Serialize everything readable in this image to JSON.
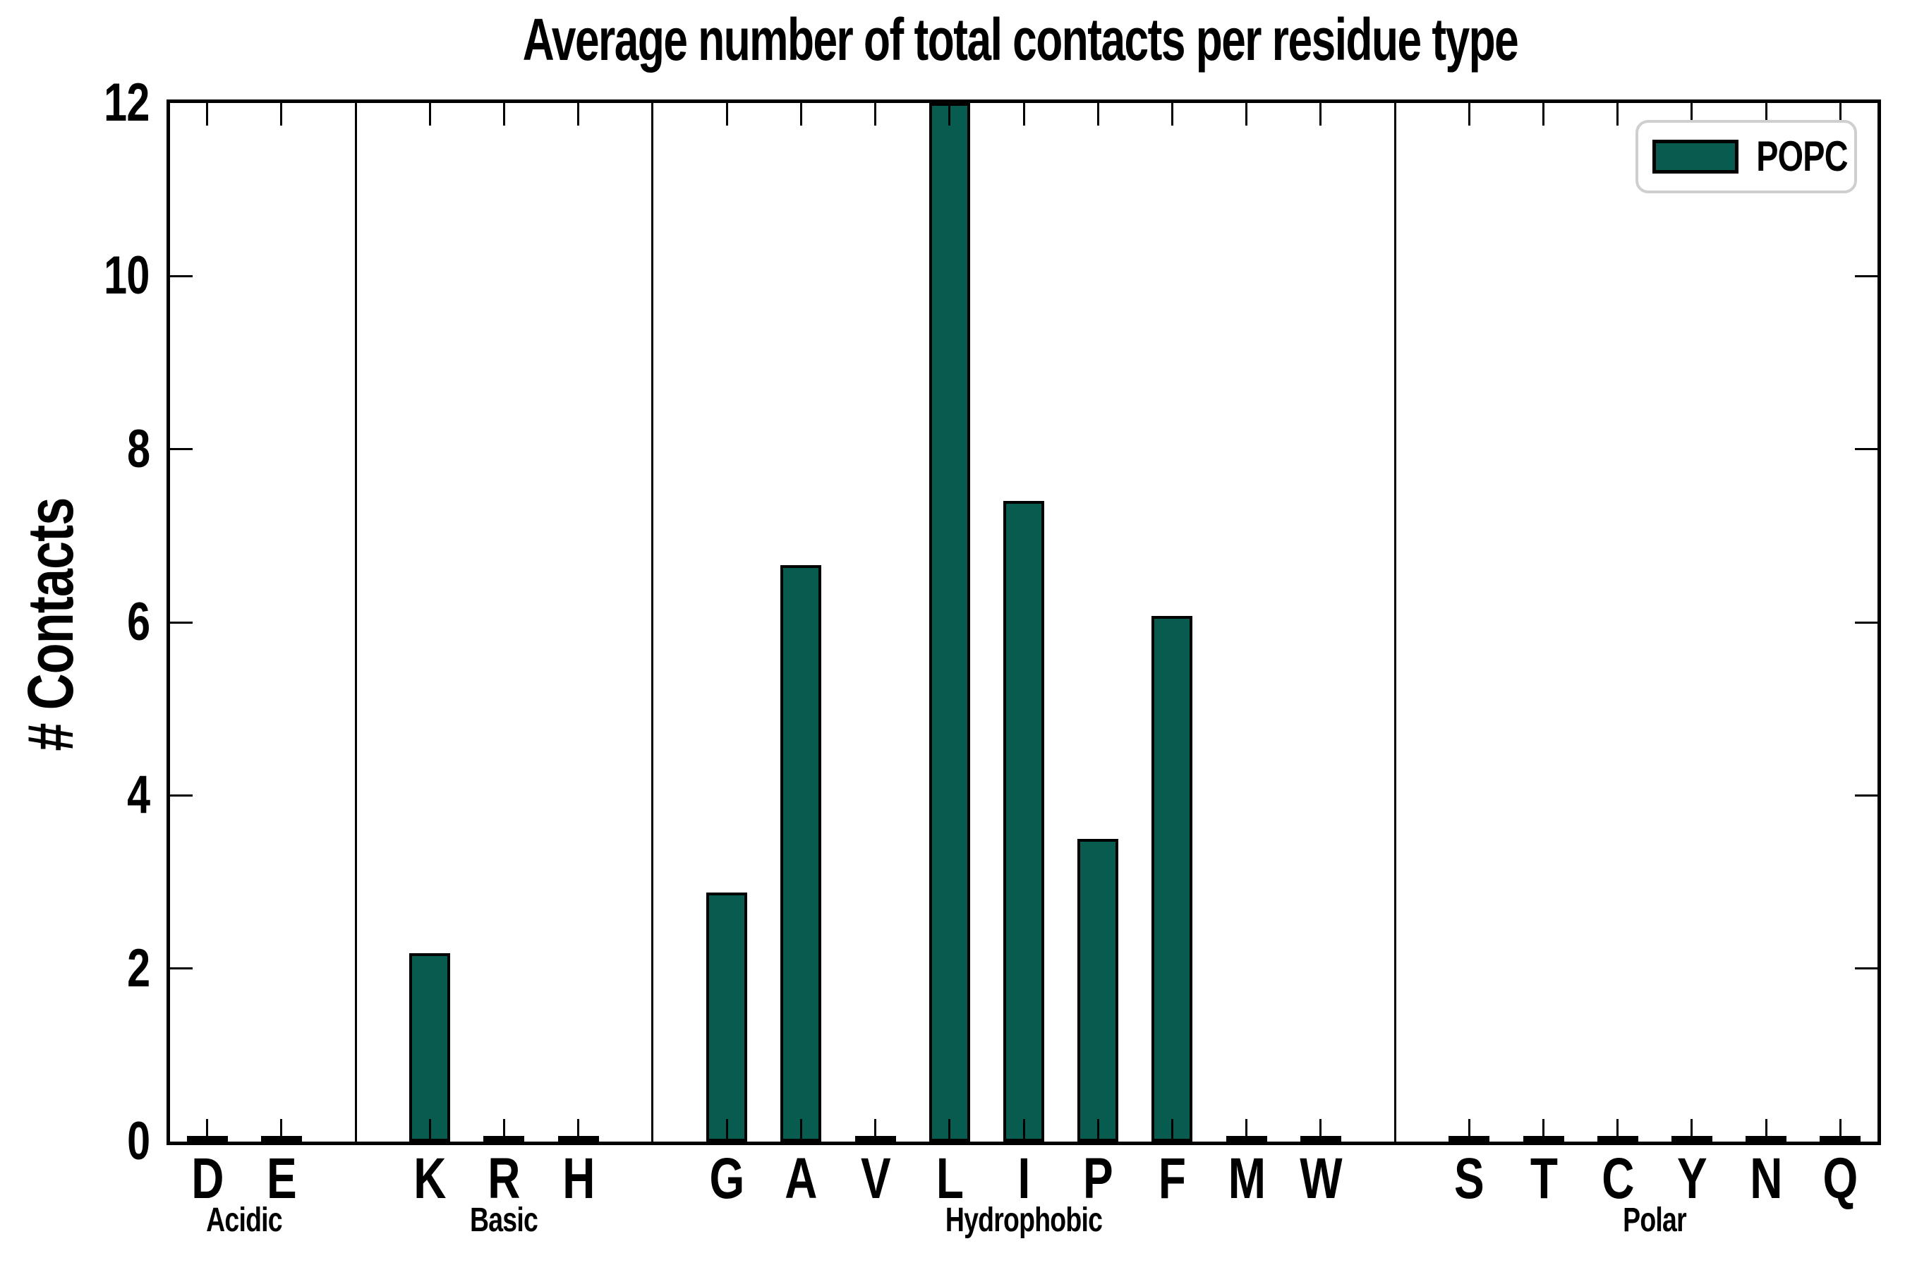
{
  "chart_data": {
    "type": "bar",
    "title": "Average number of total contacts per residue type",
    "xlabel": "",
    "ylabel": "# Contacts",
    "ylim": [
      0,
      12
    ],
    "yticks": [
      0,
      2,
      4,
      6,
      8,
      10,
      12
    ],
    "grid": false,
    "bar_color": "#075c4f",
    "bar_edge_color": "#000000",
    "legend": {
      "entries": [
        "POPC"
      ],
      "position": "upper right",
      "swatch_color": "#075c4f"
    },
    "group_separators": true,
    "categories": [
      "D",
      "E",
      "K",
      "R",
      "H",
      "G",
      "A",
      "V",
      "L",
      "I",
      "P",
      "F",
      "M",
      "W",
      "S",
      "T",
      "C",
      "Y",
      "N",
      "Q"
    ],
    "series": [
      {
        "name": "POPC",
        "values": [
          0.03,
          0.03,
          2.18,
          0.03,
          0.03,
          2.88,
          6.66,
          0.03,
          12.0,
          7.4,
          3.5,
          6.07,
          0.03,
          0.03,
          0.03,
          0.03,
          0.03,
          0.03,
          0.03,
          0.03
        ]
      }
    ],
    "groups": [
      {
        "label": "Acidic",
        "residues": [
          {
            "label": "D",
            "value": 0.03
          },
          {
            "label": "E",
            "value": 0.03
          }
        ]
      },
      {
        "label": "Basic",
        "residues": [
          {
            "label": "K",
            "value": 2.18
          },
          {
            "label": "R",
            "value": 0.03
          },
          {
            "label": "H",
            "value": 0.03
          }
        ]
      },
      {
        "label": "Hydrophobic",
        "residues": [
          {
            "label": "G",
            "value": 2.88
          },
          {
            "label": "A",
            "value": 6.66
          },
          {
            "label": "V",
            "value": 0.03
          },
          {
            "label": "L",
            "value": 12.0
          },
          {
            "label": "I",
            "value": 7.4
          },
          {
            "label": "P",
            "value": 3.5
          },
          {
            "label": "F",
            "value": 6.07
          },
          {
            "label": "M",
            "value": 0.03
          },
          {
            "label": "W",
            "value": 0.03
          }
        ]
      },
      {
        "label": "Polar",
        "residues": [
          {
            "label": "S",
            "value": 0.03
          },
          {
            "label": "T",
            "value": 0.03
          },
          {
            "label": "C",
            "value": 0.03
          },
          {
            "label": "Y",
            "value": 0.03
          },
          {
            "label": "N",
            "value": 0.03
          },
          {
            "label": "Q",
            "value": 0.03
          }
        ]
      }
    ]
  }
}
